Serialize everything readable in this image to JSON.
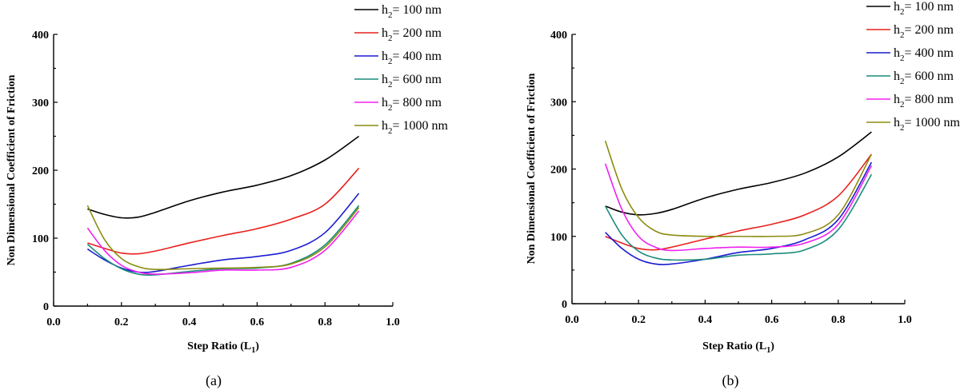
{
  "chart_data": [
    {
      "type": "line",
      "panel_label": "(a)",
      "xlabel": "Step Ratio (L",
      "xlabel_sub": "1",
      "xlabel_end": ")",
      "ylabel": "Non Dimensional Coefficient of Friction",
      "xlim": [
        0.0,
        1.0
      ],
      "ylim": [
        0,
        400
      ],
      "xticks": [
        "0.0",
        "0.2",
        "0.4",
        "0.6",
        "0.8",
        "1.0"
      ],
      "yticks": [
        "0",
        "100",
        "200",
        "300",
        "400"
      ],
      "legend_position": "top-right",
      "series": [
        {
          "label_pre": "h",
          "label_sub": "2",
          "label_post": "= 100 nm",
          "color": "#000000",
          "x": [
            0.1,
            0.15,
            0.2,
            0.25,
            0.3,
            0.4,
            0.5,
            0.6,
            0.7,
            0.8,
            0.9
          ],
          "y": [
            143,
            135,
            130,
            131,
            138,
            155,
            168,
            178,
            192,
            215,
            250
          ]
        },
        {
          "label_pre": "h",
          "label_sub": "2",
          "label_post": "= 200 nm",
          "color": "#e8201c",
          "x": [
            0.1,
            0.15,
            0.2,
            0.25,
            0.3,
            0.4,
            0.5,
            0.6,
            0.7,
            0.8,
            0.9
          ],
          "y": [
            93,
            85,
            78,
            77,
            81,
            93,
            104,
            114,
            128,
            150,
            203
          ]
        },
        {
          "label_pre": "h",
          "label_sub": "2",
          "label_post": "= 400 nm",
          "color": "#1c1cd0",
          "x": [
            0.1,
            0.15,
            0.2,
            0.25,
            0.3,
            0.4,
            0.5,
            0.6,
            0.7,
            0.8,
            0.9
          ],
          "y": [
            84,
            68,
            56,
            50,
            51,
            60,
            68,
            73,
            82,
            108,
            166
          ]
        },
        {
          "label_pre": "h",
          "label_sub": "2",
          "label_post": "= 600 nm",
          "color": "#1a8c7c",
          "x": [
            0.1,
            0.15,
            0.2,
            0.25,
            0.3,
            0.4,
            0.5,
            0.6,
            0.7,
            0.8,
            0.9
          ],
          "y": [
            91,
            70,
            55,
            47,
            46,
            51,
            55,
            56,
            63,
            90,
            148
          ]
        },
        {
          "label_pre": "h",
          "label_sub": "2",
          "label_post": "= 800 nm",
          "color": "#f020f0",
          "x": [
            0.1,
            0.15,
            0.2,
            0.25,
            0.3,
            0.4,
            0.5,
            0.6,
            0.7,
            0.8,
            0.9
          ],
          "y": [
            115,
            82,
            60,
            50,
            47,
            49,
            53,
            53,
            57,
            82,
            140
          ]
        },
        {
          "label_pre": "h",
          "label_sub": "2",
          "label_post": "= 1000 nm",
          "color": "#8c8c10",
          "x": [
            0.1,
            0.15,
            0.2,
            0.25,
            0.3,
            0.4,
            0.5,
            0.6,
            0.7,
            0.8,
            0.9
          ],
          "y": [
            148,
            98,
            70,
            58,
            54,
            55,
            56,
            57,
            62,
            87,
            145
          ]
        }
      ]
    },
    {
      "type": "line",
      "panel_label": "(b)",
      "xlabel": "Step Ratio (L",
      "xlabel_sub": "1",
      "xlabel_end": ")",
      "ylabel": "Non Dimensional Coefficient of Friction",
      "xlim": [
        0.0,
        1.0
      ],
      "ylim": [
        0,
        400
      ],
      "xticks": [
        "0.0",
        "0.2",
        "0.4",
        "0.6",
        "0.8",
        "1.0"
      ],
      "yticks": [
        "0",
        "100",
        "200",
        "300",
        "400"
      ],
      "legend_position": "top-right",
      "series": [
        {
          "label_pre": "h",
          "label_sub": "2",
          "label_post": "= 100 nm",
          "color": "#000000",
          "x": [
            0.1,
            0.15,
            0.2,
            0.25,
            0.3,
            0.4,
            0.5,
            0.6,
            0.7,
            0.8,
            0.9
          ],
          "y": [
            145,
            136,
            132,
            134,
            140,
            157,
            170,
            180,
            194,
            218,
            255
          ]
        },
        {
          "label_pre": "h",
          "label_sub": "2",
          "label_post": "= 200 nm",
          "color": "#e8201c",
          "x": [
            0.1,
            0.15,
            0.2,
            0.25,
            0.3,
            0.4,
            0.5,
            0.6,
            0.7,
            0.8,
            0.9
          ],
          "y": [
            100,
            90,
            82,
            80,
            84,
            96,
            108,
            118,
            132,
            160,
            222
          ]
        },
        {
          "label_pre": "h",
          "label_sub": "2",
          "label_post": "= 400 nm",
          "color": "#1c1cd0",
          "x": [
            0.1,
            0.15,
            0.2,
            0.25,
            0.3,
            0.4,
            0.5,
            0.6,
            0.7,
            0.8,
            0.9
          ],
          "y": [
            106,
            82,
            66,
            59,
            59,
            66,
            76,
            82,
            95,
            125,
            210
          ]
        },
        {
          "label_pre": "h",
          "label_sub": "2",
          "label_post": "= 600 nm",
          "color": "#1a8c7c",
          "x": [
            0.1,
            0.15,
            0.2,
            0.25,
            0.3,
            0.4,
            0.5,
            0.6,
            0.7,
            0.8,
            0.9
          ],
          "y": [
            145,
            102,
            78,
            68,
            65,
            66,
            72,
            74,
            80,
            110,
            192
          ]
        },
        {
          "label_pre": "h",
          "label_sub": "2",
          "label_post": "= 800 nm",
          "color": "#f020f0",
          "x": [
            0.1,
            0.15,
            0.2,
            0.25,
            0.3,
            0.4,
            0.5,
            0.6,
            0.7,
            0.8,
            0.9
          ],
          "y": [
            208,
            140,
            100,
            84,
            79,
            82,
            84,
            84,
            90,
            118,
            205
          ]
        },
        {
          "label_pre": "h",
          "label_sub": "2",
          "label_post": "= 1000 nm",
          "color": "#8c8c10",
          "x": [
            0.1,
            0.15,
            0.2,
            0.25,
            0.3,
            0.4,
            0.5,
            0.6,
            0.7,
            0.8,
            0.9
          ],
          "y": [
            242,
            170,
            128,
            108,
            102,
            100,
            100,
            100,
            104,
            132,
            222
          ]
        }
      ]
    }
  ]
}
